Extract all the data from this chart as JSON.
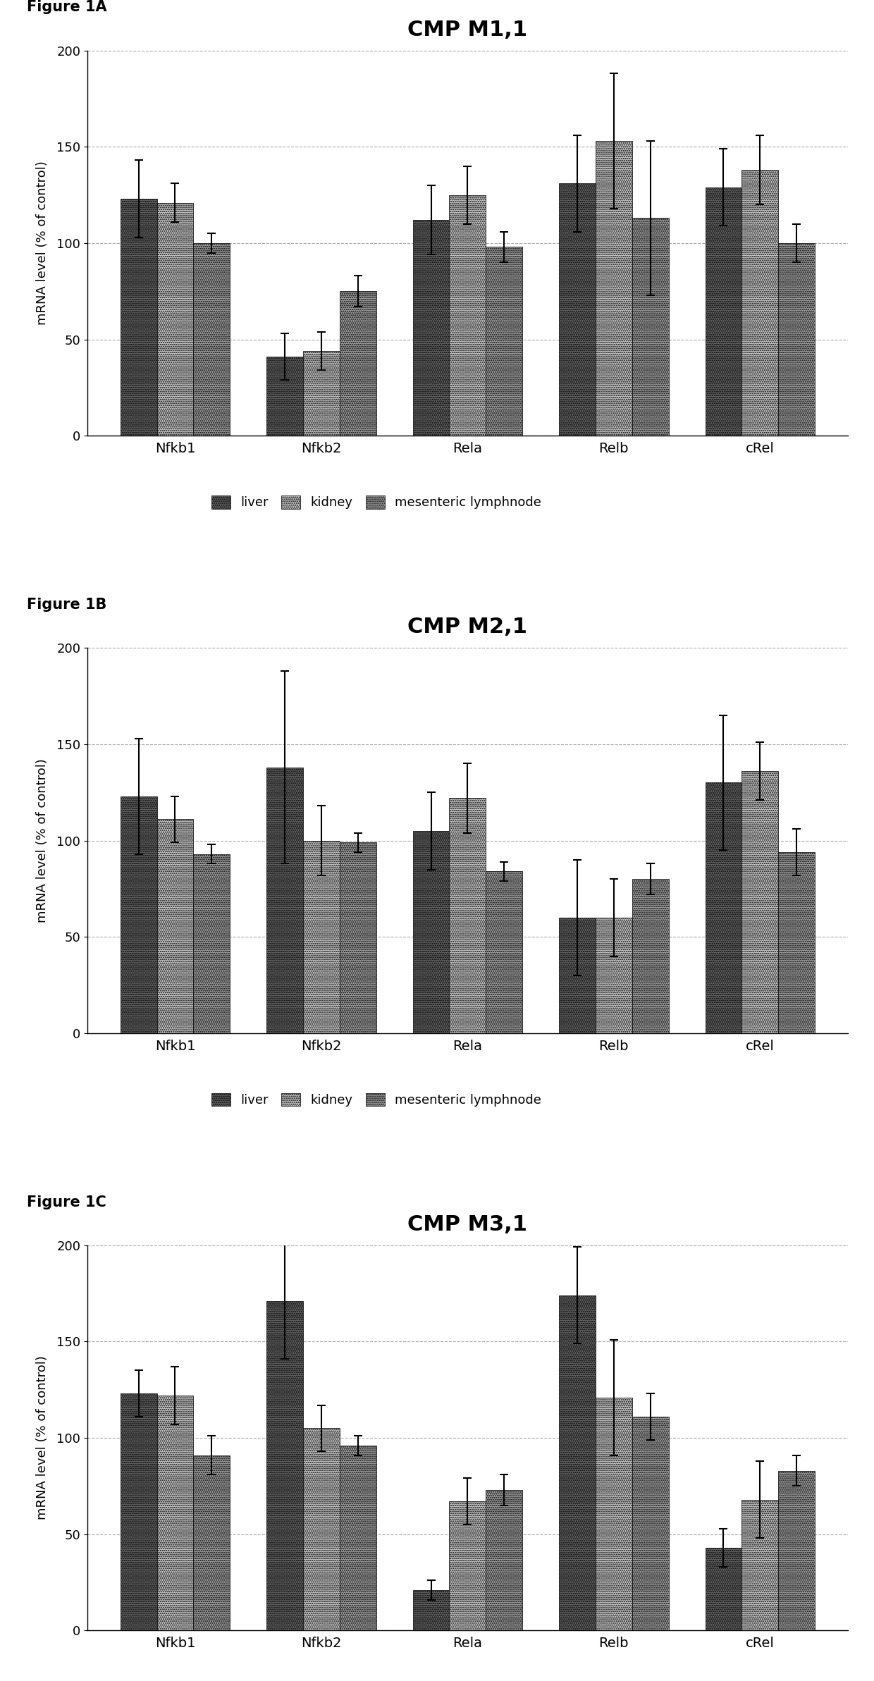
{
  "figures": [
    {
      "label": "Figure 1A",
      "title": "CMP M1,1",
      "categories": [
        "Nfkb1",
        "Nfkb2",
        "Rela",
        "Relb",
        "cRel"
      ],
      "liver": [
        123,
        41,
        112,
        131,
        129
      ],
      "kidney": [
        121,
        44,
        125,
        153,
        138
      ],
      "lymph": [
        100,
        75,
        98,
        113,
        100
      ],
      "liver_err": [
        20,
        12,
        18,
        25,
        20
      ],
      "kidney_err": [
        10,
        10,
        15,
        35,
        18
      ],
      "lymph_err": [
        5,
        8,
        8,
        40,
        10
      ]
    },
    {
      "label": "Figure 1B",
      "title": "CMP M2,1",
      "categories": [
        "Nfkb1",
        "Nfkb2",
        "Rela",
        "Relb",
        "cRel"
      ],
      "liver": [
        123,
        138,
        105,
        60,
        130
      ],
      "kidney": [
        111,
        100,
        122,
        60,
        136
      ],
      "lymph": [
        93,
        99,
        84,
        80,
        94
      ],
      "liver_err": [
        30,
        50,
        20,
        30,
        35
      ],
      "kidney_err": [
        12,
        18,
        18,
        20,
        15
      ],
      "lymph_err": [
        5,
        5,
        5,
        8,
        12
      ]
    },
    {
      "label": "Figure 1C",
      "title": "CMP M3,1",
      "categories": [
        "Nfkb1",
        "Nfkb2",
        "Rela",
        "Relb",
        "cRel"
      ],
      "liver": [
        123,
        171,
        21,
        174,
        43
      ],
      "kidney": [
        122,
        105,
        67,
        121,
        68
      ],
      "lymph": [
        91,
        96,
        73,
        111,
        83
      ],
      "liver_err": [
        12,
        30,
        5,
        25,
        10
      ],
      "kidney_err": [
        15,
        12,
        12,
        30,
        20
      ],
      "lymph_err": [
        10,
        5,
        8,
        12,
        8
      ]
    }
  ],
  "color_liver": "#636363",
  "color_kidney": "#c8c8c8",
  "color_lymph": "#a0a0a0",
  "ylim": [
    0,
    200
  ],
  "yticks": [
    0,
    50,
    100,
    150,
    200
  ],
  "ylabel": "mRNA level (% of control)",
  "legend_labels": [
    "liver",
    "kidney",
    "mesenteric lymphnode"
  ],
  "bar_width": 0.25,
  "figure_labels": [
    "Figure 1A",
    "Figure 1B",
    "Figure 1C"
  ]
}
